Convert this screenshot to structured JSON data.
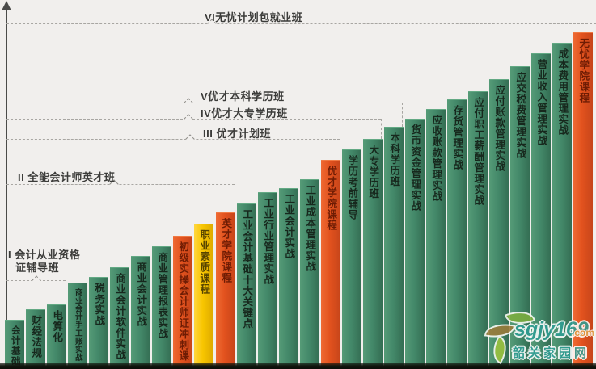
{
  "palette": {
    "background": "#f1efed",
    "bar_green": "#44896a",
    "bar_red": "#e2521e",
    "bar_yellow": "#f8c500",
    "bar_text_green": "#17281d",
    "bar_text_red": "#6e1c04",
    "bar_text_yellow": "#554300",
    "tier_text": "#3c3c3a",
    "dashed_line": "#a8a6a2",
    "axis": "#4b4b49",
    "bottom_strip": "#10140c",
    "watermark_teal": "#2f9e94",
    "watermark_orange": "#df9a3d"
  },
  "tiers": [
    {
      "numeral": "VI",
      "label": "VI无忧计划包就业班"
    },
    {
      "numeral": "V",
      "label": "V优才本科学历班"
    },
    {
      "numeral": "IV",
      "label": "IV优才大专学历班"
    },
    {
      "numeral": "III",
      "label": "III 优才计划班"
    },
    {
      "numeral": "II",
      "label": "II 全能会计师英才班"
    },
    {
      "numeral": "I",
      "label": "I 会计从业资格证辅导班",
      "lines": [
        "I 会计从业资格",
        "证辅导班"
      ]
    }
  ],
  "bars": [
    {
      "label": "会计基础",
      "color": "green"
    },
    {
      "label": "财经法规",
      "color": "green"
    },
    {
      "label": "电算化",
      "color": "green"
    },
    {
      "label": "商业会计手工账实战",
      "color": "green"
    },
    {
      "label": "税务实战",
      "color": "green"
    },
    {
      "label": "商业会计软件实战",
      "color": "green"
    },
    {
      "label": "商业会计实战",
      "color": "green"
    },
    {
      "label": "商业管理报表实战",
      "color": "green"
    },
    {
      "label": "初级实操会计师证冲刺课",
      "color": "red"
    },
    {
      "label": "职业素质课程",
      "color": "yellow"
    },
    {
      "label": "英才学院课程",
      "color": "red"
    },
    {
      "label": "工业会计基础十大关键点",
      "color": "green"
    },
    {
      "label": "工业行业管理实战",
      "color": "green"
    },
    {
      "label": "工业会计实战",
      "color": "green"
    },
    {
      "label": "工业成本管理实战",
      "color": "green"
    },
    {
      "label": "优才学院课程",
      "color": "red"
    },
    {
      "label": "学历考前辅导",
      "color": "green"
    },
    {
      "label": "大专学历班",
      "color": "green"
    },
    {
      "label": "本科学历班",
      "color": "green"
    },
    {
      "label": "货币资金管理实战",
      "color": "green"
    },
    {
      "label": "应收账款管理实战",
      "color": "green"
    },
    {
      "label": "存货管理实战",
      "color": "green"
    },
    {
      "label": "应付职工薪酬管理实战",
      "color": "green"
    },
    {
      "label": "应付账款管理实战",
      "color": "green"
    },
    {
      "label": "应交税费管理实战",
      "color": "green"
    },
    {
      "label": "营业收入管理实战",
      "color": "green"
    },
    {
      "label": "成本费用管理实战",
      "color": "green"
    },
    {
      "label": "无忧学院课程",
      "color": "red"
    }
  ],
  "watermark": {
    "site": "sgjy169",
    "tld": ".com",
    "caption": "韶关家园网"
  }
}
